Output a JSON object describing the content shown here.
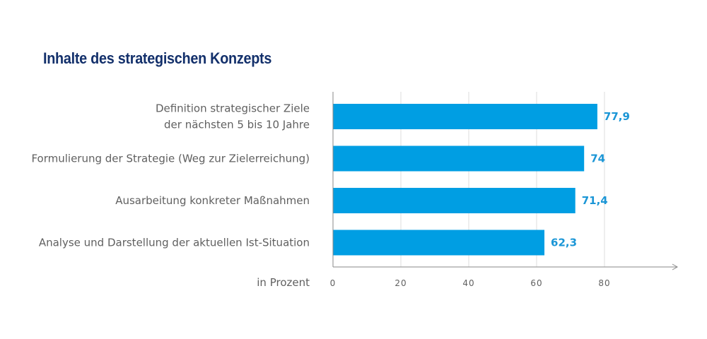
{
  "chart_data": {
    "type": "bar",
    "orientation": "horizontal",
    "title": "Inhalte des strategischen Konzepts",
    "categories": [
      [
        "Definition strategischer Ziele",
        "der nächsten 5 bis 10 Jahre"
      ],
      [
        "Formulierung der Strategie (Weg zur Zielerreichung)"
      ],
      [
        "Ausarbeitung konkreter Maßnahmen"
      ],
      [
        "Analyse und Darstellung der aktuellen Ist-Situation"
      ]
    ],
    "values": [
      77.9,
      74,
      71.4,
      62.3
    ],
    "value_labels": [
      "77,9",
      "74",
      "71,4",
      "62,3"
    ],
    "xlabel": "in Prozent",
    "xticks": [
      0,
      20,
      40,
      60,
      80
    ],
    "xlim": [
      0,
      100
    ],
    "grid": true,
    "bar_color": "#009ee3",
    "label_color": "#1b96d6"
  }
}
